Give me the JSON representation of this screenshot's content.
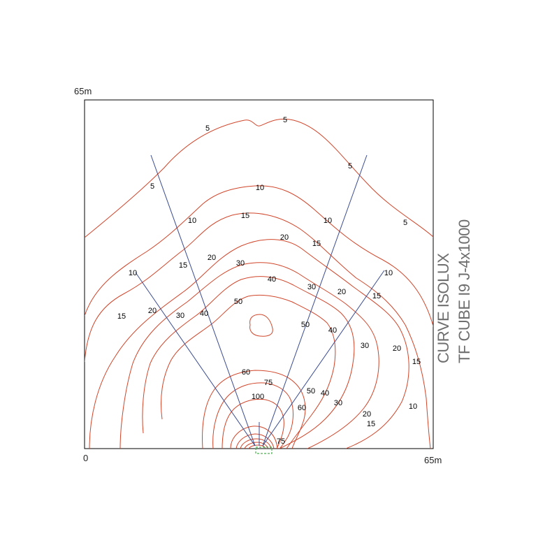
{
  "axes": {
    "top_left_label": "65m",
    "origin_label": "0",
    "bottom_right_label": "65m"
  },
  "title": {
    "line1": "CURVE ISOLUX",
    "line2": "TF CUBE I9  J-4x1000"
  },
  "colors": {
    "contour": "#d0452a",
    "beam_lines": "#3b4c8f",
    "fixture": "#4caf50",
    "frame": "#000000"
  },
  "contour_labels": [
    {
      "text": "5"
    },
    {
      "text": "5"
    },
    {
      "text": "5"
    },
    {
      "text": "5"
    },
    {
      "text": "5"
    },
    {
      "text": "10"
    },
    {
      "text": "10"
    },
    {
      "text": "10"
    },
    {
      "text": "10"
    },
    {
      "text": "10"
    },
    {
      "text": "10"
    },
    {
      "text": "15"
    },
    {
      "text": "15"
    },
    {
      "text": "15"
    },
    {
      "text": "15"
    },
    {
      "text": "15"
    },
    {
      "text": "15"
    },
    {
      "text": "15"
    },
    {
      "text": "20"
    },
    {
      "text": "20"
    },
    {
      "text": "20"
    },
    {
      "text": "20"
    },
    {
      "text": "20"
    },
    {
      "text": "20"
    },
    {
      "text": "30"
    },
    {
      "text": "30"
    },
    {
      "text": "30"
    },
    {
      "text": "30"
    },
    {
      "text": "30"
    },
    {
      "text": "40"
    },
    {
      "text": "40"
    },
    {
      "text": "40"
    },
    {
      "text": "40"
    },
    {
      "text": "50"
    },
    {
      "text": "50"
    },
    {
      "text": "50"
    },
    {
      "text": "60"
    },
    {
      "text": "60"
    },
    {
      "text": "75"
    },
    {
      "text": "75"
    },
    {
      "text": "100"
    }
  ]
}
